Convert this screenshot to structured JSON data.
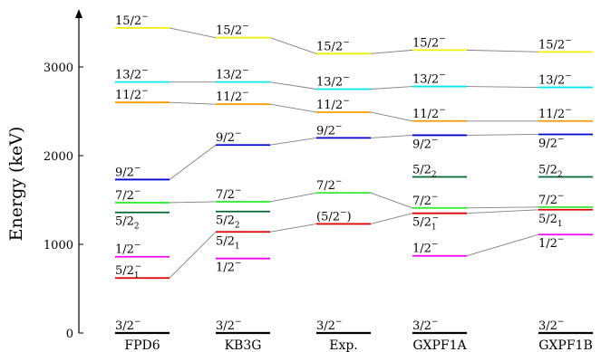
{
  "chart_data": {
    "type": "level-scheme",
    "ylabel": "Energy (keV)",
    "ylim": [
      0,
      3500
    ],
    "yticks": [
      {
        "value": 0,
        "label": "0"
      },
      {
        "value": 1000,
        "label": "1000"
      },
      {
        "value": 2000,
        "label": "2000"
      },
      {
        "value": 3000,
        "label": "3000"
      }
    ],
    "colors": {
      "15/2": "#f0f000",
      "13/2": "#00e8e8",
      "11/2": "#ff9900",
      "9/2": "#0000cc",
      "7/2": "#33ee33",
      "5/2_2": "#006633",
      "5/2_1": "#dd0000",
      "1/2": "#ff00ff",
      "3/2": "#000000"
    },
    "categories": [
      "FPD6",
      "KB3G",
      "Exp.",
      "GXPF1A",
      "GXPF1B"
    ],
    "columns": [
      {
        "name": "FPD6",
        "levels": [
          {
            "id": "3/2",
            "spin": "3/2",
            "sup": "−",
            "sub": "",
            "energy": 0,
            "labelPos": "above"
          },
          {
            "id": "5/2_1",
            "spin": "5/2",
            "sup": "−",
            "sub": "1",
            "energy": 620,
            "labelPos": "above"
          },
          {
            "id": "1/2",
            "spin": "1/2",
            "sup": "−",
            "sub": "",
            "energy": 860,
            "labelPos": "above"
          },
          {
            "id": "5/2_2",
            "spin": "5/2",
            "sup": "",
            "sub": "2",
            "energy": 1360,
            "labelPos": "below"
          },
          {
            "id": "7/2",
            "spin": "7/2",
            "sup": "−",
            "sub": "",
            "energy": 1470,
            "labelPos": "above"
          },
          {
            "id": "9/2",
            "spin": "9/2",
            "sup": "−",
            "sub": "",
            "energy": 1730,
            "labelPos": "above"
          },
          {
            "id": "11/2",
            "spin": "11/2",
            "sup": "−",
            "sub": "",
            "energy": 2600,
            "labelPos": "above"
          },
          {
            "id": "13/2",
            "spin": "13/2",
            "sup": "−",
            "sub": "",
            "energy": 2830,
            "labelPos": "above"
          },
          {
            "id": "15/2",
            "spin": "15/2",
            "sup": "−",
            "sub": "",
            "energy": 3440,
            "labelPos": "above"
          }
        ]
      },
      {
        "name": "KB3G",
        "levels": [
          {
            "id": "3/2",
            "spin": "3/2",
            "sup": "−",
            "sub": "",
            "energy": 0,
            "labelPos": "above"
          },
          {
            "id": "1/2",
            "spin": "1/2",
            "sup": "−",
            "sub": "",
            "energy": 840,
            "labelPos": "below"
          },
          {
            "id": "5/2_1",
            "spin": "5/2",
            "sup": "",
            "sub": "1",
            "energy": 1140,
            "labelPos": "below"
          },
          {
            "id": "5/2_2",
            "spin": "5/2",
            "sup": "",
            "sub": "2",
            "energy": 1370,
            "labelPos": "below"
          },
          {
            "id": "7/2",
            "spin": "7/2",
            "sup": "−",
            "sub": "",
            "energy": 1480,
            "labelPos": "above"
          },
          {
            "id": "9/2",
            "spin": "9/2",
            "sup": "−",
            "sub": "",
            "energy": 2120,
            "labelPos": "above"
          },
          {
            "id": "11/2",
            "spin": "11/2",
            "sup": "−",
            "sub": "",
            "energy": 2580,
            "labelPos": "above"
          },
          {
            "id": "13/2",
            "spin": "13/2",
            "sup": "−",
            "sub": "",
            "energy": 2830,
            "labelPos": "above"
          },
          {
            "id": "15/2",
            "spin": "15/2",
            "sup": "−",
            "sub": "",
            "energy": 3330,
            "labelPos": "above"
          }
        ]
      },
      {
        "name": "Exp.",
        "levels": [
          {
            "id": "3/2",
            "spin": "3/2",
            "sup": "−",
            "sub": "",
            "energy": 0,
            "labelPos": "above"
          },
          {
            "id": "5/2_1",
            "spin": "(5/2",
            "sup": "−",
            "sub": "",
            "close": ")",
            "energy": 1230,
            "labelPos": "above"
          },
          {
            "id": "7/2",
            "spin": "7/2",
            "sup": "−",
            "sub": "",
            "energy": 1580,
            "labelPos": "above"
          },
          {
            "id": "9/2",
            "spin": "9/2",
            "sup": "−",
            "sub": "",
            "energy": 2200,
            "labelPos": "above"
          },
          {
            "id": "11/2",
            "spin": "11/2",
            "sup": "−",
            "sub": "",
            "energy": 2490,
            "labelPos": "above"
          },
          {
            "id": "13/2",
            "spin": "13/2",
            "sup": "−",
            "sub": "",
            "energy": 2750,
            "labelPos": "above"
          },
          {
            "id": "15/2",
            "spin": "15/2",
            "sup": "−",
            "sub": "",
            "energy": 3150,
            "labelPos": "above"
          }
        ]
      },
      {
        "name": "GXPF1A",
        "levels": [
          {
            "id": "3/2",
            "spin": "3/2",
            "sup": "−",
            "sub": "",
            "energy": 0,
            "labelPos": "above"
          },
          {
            "id": "1/2",
            "spin": "1/2",
            "sup": "−",
            "sub": "",
            "energy": 870,
            "labelPos": "above"
          },
          {
            "id": "5/2_1",
            "spin": "5/2",
            "sup": "−",
            "sub": "1",
            "energy": 1350,
            "labelPos": "below"
          },
          {
            "id": "7/2",
            "spin": "7/2",
            "sup": "−",
            "sub": "",
            "energy": 1410,
            "labelPos": "above"
          },
          {
            "id": "5/2_2",
            "spin": "5/2",
            "sup": "",
            "sub": "2",
            "energy": 1760,
            "labelPos": "above"
          },
          {
            "id": "9/2",
            "spin": "9/2",
            "sup": "−",
            "sub": "",
            "energy": 2230,
            "labelPos": "below"
          },
          {
            "id": "11/2",
            "spin": "11/2",
            "sup": "−",
            "sub": "",
            "energy": 2390,
            "labelPos": "above"
          },
          {
            "id": "13/2",
            "spin": "13/2",
            "sup": "−",
            "sub": "",
            "energy": 2780,
            "labelPos": "above"
          },
          {
            "id": "15/2",
            "spin": "15/2",
            "sup": "−",
            "sub": "",
            "energy": 3190,
            "labelPos": "above"
          }
        ]
      },
      {
        "name": "GXPF1B",
        "levels": [
          {
            "id": "3/2",
            "spin": "3/2",
            "sup": "−",
            "sub": "",
            "energy": 0,
            "labelPos": "above"
          },
          {
            "id": "1/2",
            "spin": "1/2",
            "sup": "−",
            "sub": "",
            "energy": 1110,
            "labelPos": "below"
          },
          {
            "id": "5/2_1",
            "spin": "5/2",
            "sup": "",
            "sub": "1",
            "energy": 1390,
            "labelPos": "below"
          },
          {
            "id": "7/2",
            "spin": "7/2",
            "sup": "−",
            "sub": "",
            "energy": 1420,
            "labelPos": "above"
          },
          {
            "id": "5/2_2",
            "spin": "5/2",
            "sup": "",
            "sub": "2",
            "energy": 1760,
            "labelPos": "above"
          },
          {
            "id": "9/2",
            "spin": "9/2",
            "sup": "−",
            "sub": "",
            "energy": 2240,
            "labelPos": "below"
          },
          {
            "id": "11/2",
            "spin": "11/2",
            "sup": "−",
            "sub": "",
            "energy": 2390,
            "labelPos": "above"
          },
          {
            "id": "13/2",
            "spin": "13/2",
            "sup": "−",
            "sub": "",
            "energy": 2770,
            "labelPos": "above"
          },
          {
            "id": "15/2",
            "spin": "15/2",
            "sup": "−",
            "sub": "",
            "energy": 3170,
            "labelPos": "above"
          }
        ]
      }
    ],
    "connections": [
      {
        "from": [
          0,
          "15/2"
        ],
        "to": [
          1,
          "15/2"
        ]
      },
      {
        "from": [
          1,
          "15/2"
        ],
        "to": [
          2,
          "15/2"
        ]
      },
      {
        "from": [
          2,
          "15/2"
        ],
        "to": [
          3,
          "15/2"
        ]
      },
      {
        "from": [
          3,
          "15/2"
        ],
        "to": [
          4,
          "15/2"
        ]
      },
      {
        "from": [
          0,
          "13/2"
        ],
        "to": [
          1,
          "13/2"
        ]
      },
      {
        "from": [
          1,
          "13/2"
        ],
        "to": [
          2,
          "13/2"
        ]
      },
      {
        "from": [
          2,
          "13/2"
        ],
        "to": [
          3,
          "13/2"
        ]
      },
      {
        "from": [
          3,
          "13/2"
        ],
        "to": [
          4,
          "13/2"
        ]
      },
      {
        "from": [
          0,
          "11/2"
        ],
        "to": [
          1,
          "11/2"
        ]
      },
      {
        "from": [
          1,
          "11/2"
        ],
        "to": [
          2,
          "11/2"
        ]
      },
      {
        "from": [
          2,
          "11/2"
        ],
        "to": [
          3,
          "11/2"
        ]
      },
      {
        "from": [
          3,
          "11/2"
        ],
        "to": [
          4,
          "11/2"
        ]
      },
      {
        "from": [
          0,
          "9/2"
        ],
        "to": [
          1,
          "9/2"
        ]
      },
      {
        "from": [
          1,
          "9/2"
        ],
        "to": [
          2,
          "9/2"
        ]
      },
      {
        "from": [
          2,
          "9/2"
        ],
        "to": [
          3,
          "9/2"
        ]
      },
      {
        "from": [
          3,
          "9/2"
        ],
        "to": [
          4,
          "9/2"
        ]
      },
      {
        "from": [
          0,
          "7/2"
        ],
        "to": [
          1,
          "7/2"
        ]
      },
      {
        "from": [
          1,
          "7/2"
        ],
        "to": [
          2,
          "7/2"
        ]
      },
      {
        "from": [
          2,
          "7/2"
        ],
        "to": [
          3,
          "7/2"
        ]
      },
      {
        "from": [
          3,
          "7/2"
        ],
        "to": [
          4,
          "7/2"
        ]
      },
      {
        "from": [
          0,
          "5/2_1"
        ],
        "to": [
          1,
          "5/2_1"
        ]
      },
      {
        "from": [
          1,
          "5/2_1"
        ],
        "to": [
          2,
          "5/2_1"
        ]
      },
      {
        "from": [
          2,
          "5/2_1"
        ],
        "to": [
          3,
          "5/2_1"
        ]
      },
      {
        "from": [
          3,
          "5/2_1"
        ],
        "to": [
          4,
          "5/2_1"
        ]
      },
      {
        "from": [
          3,
          "1/2"
        ],
        "to": [
          4,
          "1/2"
        ]
      }
    ]
  }
}
